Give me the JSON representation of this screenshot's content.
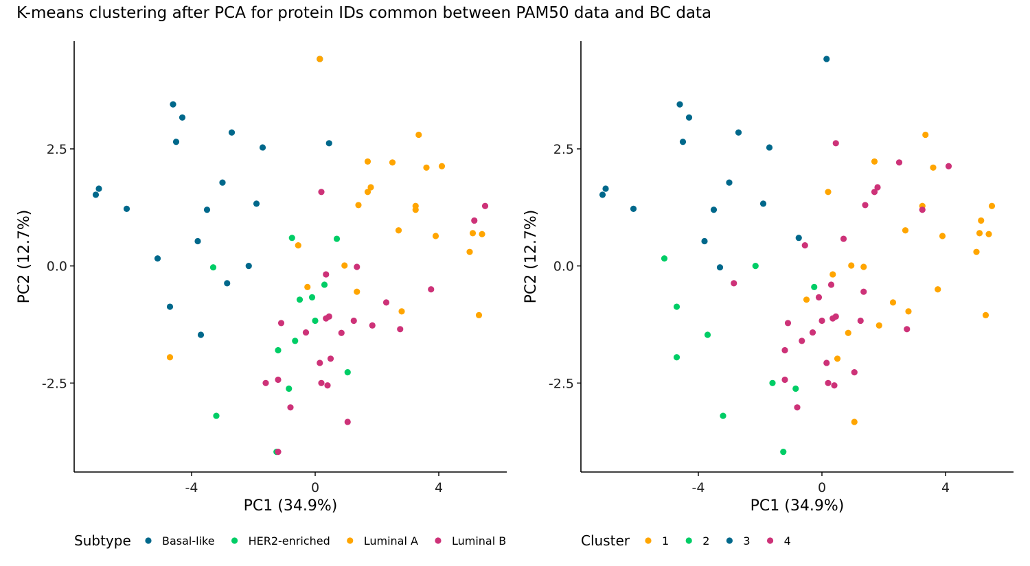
{
  "title": "K-means clustering after PCA for protein IDs common between PAM50 data and BC data",
  "chart_data": [
    {
      "type": "scatter",
      "xlabel": "PC1 (34.9%)",
      "ylabel": "PC2 (12.7%)",
      "xlim": [
        -7.8,
        6.2
      ],
      "ylim": [
        -4.4,
        4.8
      ],
      "xticks": [
        -4,
        0,
        4
      ],
      "xtick_labels": [
        "-4",
        "0",
        "4"
      ],
      "yticks": [
        -2.5,
        0.0,
        2.5
      ],
      "ytick_labels": [
        "-2.5",
        "0.0",
        "2.5"
      ],
      "grid": false,
      "legend": {
        "title": "Subtype",
        "position": "bottom"
      },
      "series": [
        {
          "name": "Basal-like",
          "color": "#00688B",
          "points": [
            [
              -4.6,
              3.45
            ],
            [
              -4.3,
              3.17
            ],
            [
              -4.5,
              2.65
            ],
            [
              -2.7,
              2.85
            ],
            [
              -1.7,
              2.53
            ],
            [
              0.45,
              2.62
            ],
            [
              -7.0,
              1.65
            ],
            [
              -7.1,
              1.52
            ],
            [
              -6.1,
              1.22
            ],
            [
              -3.0,
              1.78
            ],
            [
              -3.5,
              1.2
            ],
            [
              -1.9,
              1.33
            ],
            [
              -3.8,
              0.53
            ],
            [
              -5.1,
              0.16
            ],
            [
              -2.15,
              0.0
            ],
            [
              -2.85,
              -0.37
            ],
            [
              -4.7,
              -0.87
            ],
            [
              -3.7,
              -1.47
            ],
            [
              0.15,
              4.42
            ]
          ]
        },
        {
          "name": "HER2-enriched",
          "color": "#00CD66",
          "points": [
            [
              -0.75,
              0.6
            ],
            [
              0.7,
              0.58
            ],
            [
              -3.3,
              -0.03
            ],
            [
              0.3,
              -0.4
            ],
            [
              -0.5,
              -0.72
            ],
            [
              -0.1,
              -0.67
            ],
            [
              0.0,
              -1.17
            ],
            [
              -0.65,
              -1.6
            ],
            [
              -1.2,
              -1.8
            ],
            [
              -0.85,
              -2.62
            ],
            [
              1.05,
              -2.27
            ],
            [
              -3.2,
              -3.2
            ],
            [
              -1.25,
              -3.97
            ]
          ]
        },
        {
          "name": "Luminal A",
          "color": "#FFA500",
          "points": [
            [
              0.15,
              4.42
            ],
            [
              3.35,
              2.8
            ],
            [
              1.7,
              2.23
            ],
            [
              2.5,
              2.21
            ],
            [
              3.6,
              2.1
            ],
            [
              4.1,
              2.13
            ],
            [
              1.8,
              1.68
            ],
            [
              1.7,
              1.58
            ],
            [
              1.4,
              1.3
            ],
            [
              3.25,
              1.28
            ],
            [
              3.25,
              1.2
            ],
            [
              2.7,
              0.76
            ],
            [
              3.9,
              0.64
            ],
            [
              5.1,
              0.7
            ],
            [
              5.4,
              0.68
            ],
            [
              5.0,
              0.3
            ],
            [
              -0.55,
              0.44
            ],
            [
              0.95,
              0.01
            ],
            [
              -0.25,
              -0.45
            ],
            [
              1.35,
              -0.55
            ],
            [
              2.8,
              -0.97
            ],
            [
              5.3,
              -1.05
            ],
            [
              -4.7,
              -1.95
            ]
          ]
        },
        {
          "name": "Luminal B",
          "color": "#CD3278",
          "points": [
            [
              0.2,
              1.58
            ],
            [
              5.5,
              1.28
            ],
            [
              5.15,
              0.97
            ],
            [
              1.35,
              -0.02
            ],
            [
              0.35,
              -0.18
            ],
            [
              3.75,
              -0.5
            ],
            [
              2.3,
              -0.78
            ],
            [
              -1.1,
              -1.22
            ],
            [
              0.45,
              -1.08
            ],
            [
              0.35,
              -1.12
            ],
            [
              1.25,
              -1.17
            ],
            [
              1.85,
              -1.27
            ],
            [
              -0.3,
              -1.42
            ],
            [
              0.85,
              -1.43
            ],
            [
              2.75,
              -1.35
            ],
            [
              0.5,
              -1.98
            ],
            [
              0.15,
              -2.07
            ],
            [
              -1.6,
              -2.5
            ],
            [
              -1.2,
              -2.43
            ],
            [
              0.2,
              -2.5
            ],
            [
              0.4,
              -2.55
            ],
            [
              -0.8,
              -3.02
            ],
            [
              1.05,
              -3.33
            ],
            [
              -1.2,
              -3.97
            ]
          ]
        }
      ]
    },
    {
      "type": "scatter",
      "xlabel": "PC1 (34.9%)",
      "ylabel": "PC2 (12.7%)",
      "xlim": [
        -7.8,
        6.2
      ],
      "ylim": [
        -4.4,
        4.8
      ],
      "xticks": [
        -4,
        0,
        4
      ],
      "xtick_labels": [
        "-4",
        "0",
        "4"
      ],
      "yticks": [
        -2.5,
        0.0,
        2.5
      ],
      "ytick_labels": [
        "-2.5",
        "0.0",
        "2.5"
      ],
      "grid": false,
      "legend": {
        "title": "Cluster",
        "position": "bottom"
      },
      "series": [
        {
          "name": "1",
          "color": "#FFA500",
          "points": [
            [
              3.35,
              2.8
            ],
            [
              1.7,
              2.23
            ],
            [
              3.6,
              2.1
            ],
            [
              0.2,
              1.58
            ],
            [
              3.25,
              1.28
            ],
            [
              5.5,
              1.28
            ],
            [
              5.15,
              0.97
            ],
            [
              2.7,
              0.76
            ],
            [
              3.9,
              0.64
            ],
            [
              5.1,
              0.7
            ],
            [
              5.4,
              0.68
            ],
            [
              5.0,
              0.3
            ],
            [
              0.95,
              0.01
            ],
            [
              1.35,
              -0.02
            ],
            [
              0.35,
              -0.18
            ],
            [
              3.75,
              -0.5
            ],
            [
              -0.5,
              -0.72
            ],
            [
              2.3,
              -0.78
            ],
            [
              2.8,
              -0.97
            ],
            [
              5.3,
              -1.05
            ],
            [
              1.85,
              -1.27
            ],
            [
              0.85,
              -1.43
            ],
            [
              0.5,
              -1.98
            ],
            [
              1.05,
              -3.33
            ]
          ]
        },
        {
          "name": "2",
          "color": "#00CD66",
          "points": [
            [
              -5.1,
              0.16
            ],
            [
              -2.15,
              0.0
            ],
            [
              -0.25,
              -0.45
            ],
            [
              -4.7,
              -0.87
            ],
            [
              -3.7,
              -1.47
            ],
            [
              -4.7,
              -1.95
            ],
            [
              -1.6,
              -2.5
            ],
            [
              -0.85,
              -2.62
            ],
            [
              -3.2,
              -3.2
            ],
            [
              -1.25,
              -3.97
            ]
          ]
        },
        {
          "name": "3",
          "color": "#00688B",
          "points": [
            [
              0.15,
              4.42
            ],
            [
              -4.6,
              3.45
            ],
            [
              -4.3,
              3.17
            ],
            [
              -2.7,
              2.85
            ],
            [
              -4.5,
              2.65
            ],
            [
              -1.7,
              2.53
            ],
            [
              -3.0,
              1.78
            ],
            [
              -7.0,
              1.65
            ],
            [
              -7.1,
              1.52
            ],
            [
              -1.9,
              1.33
            ],
            [
              -6.1,
              1.22
            ],
            [
              -3.5,
              1.2
            ],
            [
              -0.75,
              0.6
            ],
            [
              -3.8,
              0.53
            ],
            [
              -3.3,
              -0.03
            ]
          ]
        },
        {
          "name": "4",
          "color": "#CD3278",
          "points": [
            [
              0.45,
              2.62
            ],
            [
              2.5,
              2.21
            ],
            [
              4.1,
              2.13
            ],
            [
              1.8,
              1.68
            ],
            [
              1.7,
              1.58
            ],
            [
              1.4,
              1.3
            ],
            [
              3.25,
              1.2
            ],
            [
              0.7,
              0.58
            ],
            [
              -0.55,
              0.44
            ],
            [
              -2.85,
              -0.37
            ],
            [
              0.3,
              -0.4
            ],
            [
              1.35,
              -0.55
            ],
            [
              -0.1,
              -0.67
            ],
            [
              0.45,
              -1.08
            ],
            [
              0.35,
              -1.12
            ],
            [
              0.0,
              -1.17
            ],
            [
              1.25,
              -1.17
            ],
            [
              -1.1,
              -1.22
            ],
            [
              -0.3,
              -1.42
            ],
            [
              2.75,
              -1.35
            ],
            [
              -0.65,
              -1.6
            ],
            [
              -1.2,
              -1.8
            ],
            [
              0.15,
              -2.07
            ],
            [
              1.05,
              -2.27
            ],
            [
              -1.2,
              -2.43
            ],
            [
              0.2,
              -2.5
            ],
            [
              0.4,
              -2.55
            ],
            [
              -0.8,
              -3.02
            ]
          ]
        }
      ]
    }
  ]
}
